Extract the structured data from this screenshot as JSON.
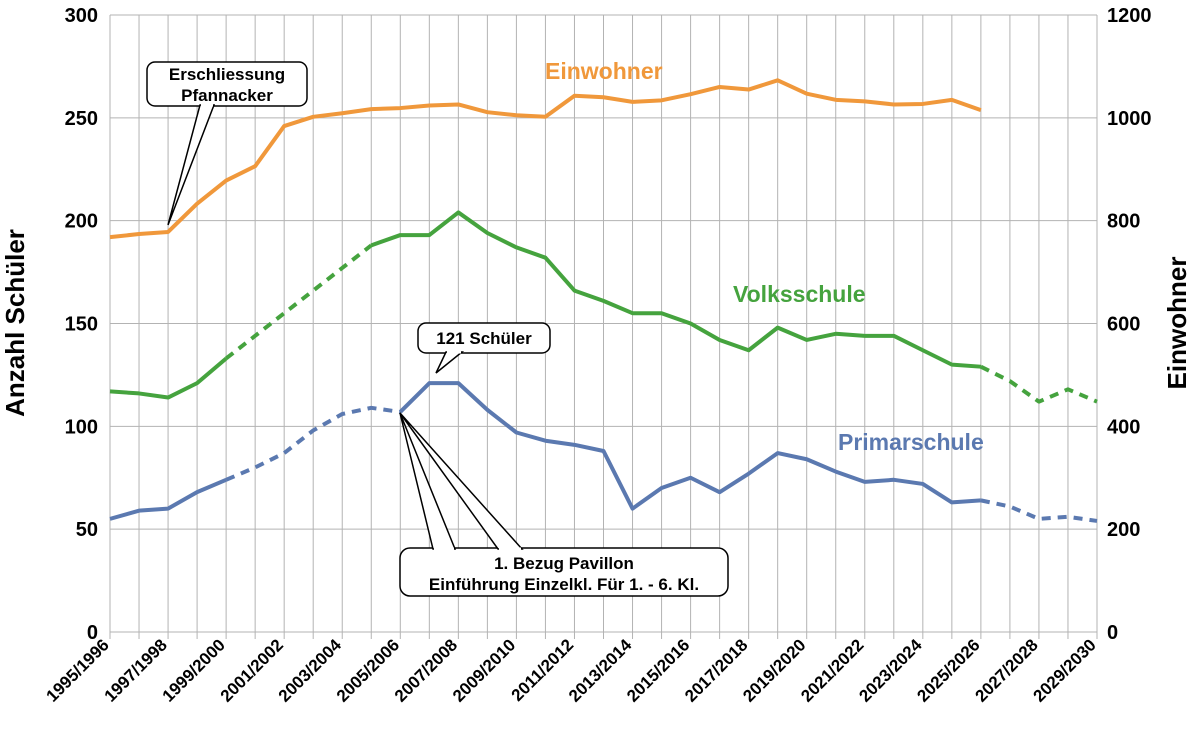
{
  "chart_data": {
    "type": "line",
    "categories": [
      "1995/1996",
      "1996/1997",
      "1997/1998",
      "1998/1999",
      "1999/2000",
      "2000/2001",
      "2001/2002",
      "2002/2003",
      "2003/2004",
      "2004/2005",
      "2005/2006",
      "2006/2007",
      "2007/2008",
      "2008/2009",
      "2009/2010",
      "2010/2011",
      "2011/2012",
      "2012/2013",
      "2013/2014",
      "2014/2015",
      "2015/2016",
      "2016/2017",
      "2017/2018",
      "2018/2019",
      "2019/2020",
      "2020/2021",
      "2021/2022",
      "2022/2023",
      "2023/2024",
      "2024/2025",
      "2025/2026",
      "2026/2027",
      "2027/2028",
      "2028/2029",
      "2029/2030"
    ],
    "x_tick_labels": [
      "1995/1996",
      "1997/1998",
      "1999/2000",
      "2001/2002",
      "2003/2004",
      "2005/2006",
      "2007/2008",
      "2009/2010",
      "2011/2012",
      "2013/2014",
      "2015/2016",
      "2017/2018",
      "2019/2020",
      "2021/2022",
      "2023/2024",
      "2025/2026",
      "2027/2028",
      "2029/2030"
    ],
    "ylabel": "Anzahl Schüler",
    "y2label": "Einwohner",
    "ylim": [
      0,
      300
    ],
    "y2lim": [
      0,
      1200
    ],
    "yticks": [
      0,
      50,
      100,
      150,
      200,
      250,
      300
    ],
    "y2ticks": [
      0,
      200,
      400,
      600,
      800,
      1000,
      1200
    ],
    "grid": true,
    "series": [
      {
        "name": "Einwohner",
        "axis": "right",
        "color": "#F0983B",
        "values": [
          768,
          774,
          778,
          833,
          878,
          906,
          984,
          1002,
          1009,
          1017,
          1019,
          1024,
          1026,
          1011,
          1005,
          1002,
          1043,
          1040,
          1031,
          1034,
          1046,
          1060,
          1055,
          1073,
          1047,
          1035,
          1032,
          1026,
          1027,
          1035,
          1015,
          null,
          null,
          null,
          null
        ],
        "dashed_ranges": []
      },
      {
        "name": "Volksschule",
        "axis": "left",
        "color": "#45A33E",
        "values": [
          117,
          116,
          114,
          121,
          133,
          144,
          155,
          166,
          177,
          188,
          193,
          193,
          204,
          194,
          187,
          182,
          166,
          161,
          155,
          155,
          150,
          142,
          137,
          148,
          142,
          145,
          144,
          144,
          137,
          130,
          129,
          122,
          112,
          118,
          112
        ],
        "dashed_ranges": [
          [
            4,
            9
          ],
          [
            30,
            34
          ]
        ]
      },
      {
        "name": "Primarschule",
        "axis": "left",
        "color": "#5B79B0",
        "values": [
          55,
          59,
          60,
          68,
          74,
          80,
          87,
          98,
          106,
          109,
          107,
          121,
          121,
          108,
          97,
          93,
          91,
          88,
          60,
          70,
          75,
          68,
          77,
          87,
          84,
          78,
          73,
          74,
          72,
          63,
          64,
          61,
          55,
          56,
          54
        ],
        "dashed_ranges": [
          [
            4,
            10
          ],
          [
            30,
            34
          ]
        ]
      }
    ],
    "annotations": {
      "erschliessung": {
        "line1": "Erschliessung",
        "line2": "Pfannacker"
      },
      "schueler": {
        "text": "121 Schüler"
      },
      "pavillon": {
        "line1": "1. Bezug Pavillon",
        "line2": "Einführung Einzelkl. Für 1. - 6. Kl."
      }
    }
  }
}
